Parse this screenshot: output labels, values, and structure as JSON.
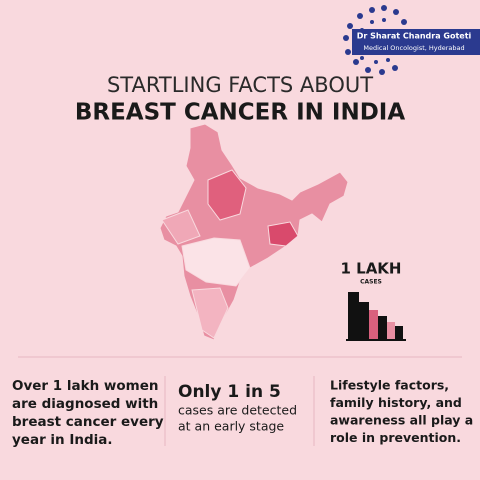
{
  "logo": {
    "name": "Dr Sharat Chandra Goteti",
    "subtitle": "Medical Oncologist, Hyderabad"
  },
  "header": {
    "title_line1": "STARTLING FACTS ABOUT",
    "title_line2": "BREAST CANCER IN INDIA"
  },
  "stat": {
    "value": "1 LAKH",
    "label": "CASES"
  },
  "facts": [
    {
      "lines": [
        "Over 1 lakh women",
        "are diagnosed with",
        "breast cancer every",
        "year in India."
      ]
    },
    {
      "heading": "Only 1 in 5",
      "lines": [
        "cases are detected",
        "at an early stage"
      ]
    },
    {
      "lines": [
        "Lifestyle factors,",
        "family history, and",
        "awareness all play a",
        "role in prevention."
      ]
    }
  ]
}
